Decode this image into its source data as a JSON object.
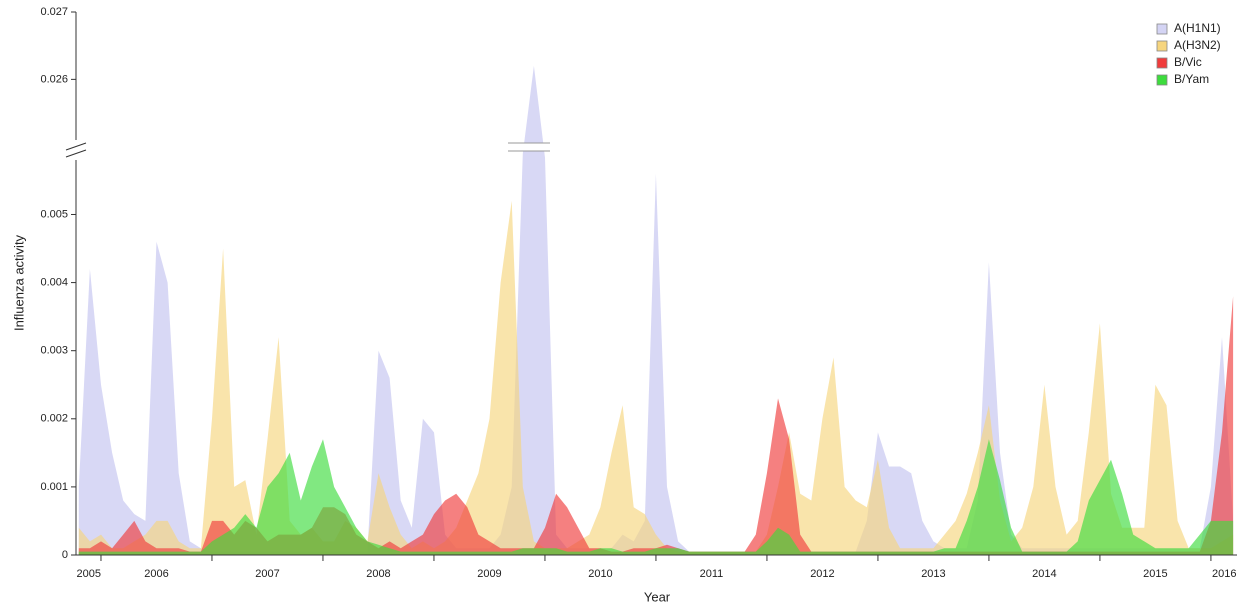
{
  "chart_data": {
    "type": "area",
    "x_label": "Year",
    "y_label": "Influenza activity",
    "legend": "top-right",
    "xlim": [
      2005.775,
      2016.235
    ],
    "xticks": [
      {
        "value": 2005.89,
        "label": "2005"
      },
      {
        "value": 2006.5,
        "label": "2006"
      },
      {
        "value": 2007.5,
        "label": "2007"
      },
      {
        "value": 2008.5,
        "label": "2008"
      },
      {
        "value": 2009.5,
        "label": "2009"
      },
      {
        "value": 2010.5,
        "label": "2010"
      },
      {
        "value": 2011.5,
        "label": "2011"
      },
      {
        "value": 2012.5,
        "label": "2012"
      },
      {
        "value": 2013.5,
        "label": "2013"
      },
      {
        "value": 2014.5,
        "label": "2014"
      },
      {
        "value": 2015.5,
        "label": "2015"
      },
      {
        "value": 2016.12,
        "label": "2016"
      }
    ],
    "xtick_marks": [
      2006,
      2007,
      2008,
      2009,
      2010,
      2011,
      2012,
      2013,
      2014,
      2015,
      2016
    ],
    "ylim": [
      0,
      0.027
    ],
    "y_break": [
      0.0058,
      0.0251
    ],
    "yticks": [
      0,
      0.001,
      0.002,
      0.003,
      0.004,
      0.005,
      0.026,
      0.027
    ],
    "x": [
      2005.8,
      2005.9,
      2006.0,
      2006.1,
      2006.2,
      2006.3,
      2006.4,
      2006.5,
      2006.6,
      2006.7,
      2006.8,
      2006.9,
      2007.0,
      2007.1,
      2007.2,
      2007.3,
      2007.4,
      2007.5,
      2007.6,
      2007.7,
      2007.8,
      2007.9,
      2008.0,
      2008.1,
      2008.2,
      2008.3,
      2008.4,
      2008.5,
      2008.6,
      2008.7,
      2008.8,
      2008.9,
      2009.0,
      2009.1,
      2009.2,
      2009.3,
      2009.4,
      2009.5,
      2009.6,
      2009.7,
      2009.8,
      2009.9,
      2010.0,
      2010.1,
      2010.2,
      2010.3,
      2010.4,
      2010.5,
      2010.6,
      2010.7,
      2010.8,
      2010.9,
      2011.0,
      2011.1,
      2011.2,
      2011.3,
      2011.4,
      2011.5,
      2011.6,
      2011.7,
      2011.8,
      2011.9,
      2012.0,
      2012.1,
      2012.2,
      2012.3,
      2012.4,
      2012.5,
      2012.6,
      2012.7,
      2012.8,
      2012.9,
      2013.0,
      2013.1,
      2013.2,
      2013.3,
      2013.4,
      2013.5,
      2013.6,
      2013.7,
      2013.8,
      2013.9,
      2014.0,
      2014.1,
      2014.2,
      2014.3,
      2014.4,
      2014.5,
      2014.6,
      2014.7,
      2014.8,
      2014.9,
      2015.0,
      2015.1,
      2015.2,
      2015.3,
      2015.4,
      2015.5,
      2015.6,
      2015.7,
      2015.8,
      2015.9,
      2016.0,
      2016.1,
      2016.2
    ],
    "series": [
      {
        "name": "A(H1N1)",
        "color": "#d4d4f4",
        "values": [
          0.001,
          0.0042,
          0.0025,
          0.0015,
          0.0008,
          0.0006,
          0.0005,
          0.0046,
          0.004,
          0.0012,
          0.0002,
          0.0001,
          5e-05,
          5e-05,
          5e-05,
          5e-05,
          5e-05,
          5e-05,
          5e-05,
          5e-05,
          5e-05,
          5e-05,
          5e-05,
          5e-05,
          5e-05,
          5e-05,
          5e-05,
          0.003,
          0.0026,
          0.0008,
          0.0004,
          0.002,
          0.0018,
          0.0003,
          0.0001,
          0.0001,
          0.0001,
          0.0001,
          0.0003,
          0.001,
          0.012,
          0.0262,
          0.008,
          0.0003,
          0.0001,
          0.0001,
          0.0001,
          0.0001,
          0.0001,
          0.0003,
          0.0002,
          0.0005,
          0.0056,
          0.001,
          0.0002,
          5e-05,
          5e-05,
          5e-05,
          5e-05,
          5e-05,
          5e-05,
          5e-05,
          5e-05,
          5e-05,
          5e-05,
          5e-05,
          5e-05,
          5e-05,
          5e-05,
          5e-05,
          5e-05,
          0.0005,
          0.0018,
          0.0013,
          0.0013,
          0.0012,
          0.0005,
          0.0002,
          0.0001,
          0.0001,
          0.0001,
          0.0008,
          0.0043,
          0.0015,
          0.0003,
          0.0001,
          0.0001,
          0.0001,
          0.0001,
          0.0001,
          0.0001,
          0.0001,
          0.0001,
          0.0001,
          0.0001,
          0.0001,
          0.0001,
          0.0001,
          0.0001,
          0.0001,
          0.0001,
          0.0001,
          0.001,
          0.0032,
          0.0005
        ]
      },
      {
        "name": "A(H3N2)",
        "color": "#f6d57e",
        "values": [
          0.0004,
          0.0002,
          0.0003,
          0.0001,
          0.0001,
          0.0002,
          0.0003,
          0.0005,
          0.0005,
          0.0002,
          0.0001,
          0.0001,
          0.002,
          0.0045,
          0.001,
          0.0011,
          0.0003,
          0.0017,
          0.0032,
          0.0005,
          0.0003,
          0.0004,
          0.0002,
          0.0002,
          0.0005,
          0.0004,
          0.0002,
          0.0012,
          0.0007,
          0.0003,
          0.0001,
          0.0002,
          0.0001,
          0.0002,
          0.0004,
          0.0008,
          0.0012,
          0.002,
          0.004,
          0.0052,
          0.001,
          0.0002,
          0.0001,
          0.0001,
          0.0001,
          0.0002,
          0.0003,
          0.0007,
          0.0015,
          0.0022,
          0.0007,
          0.0006,
          0.0003,
          0.0001,
          5e-05,
          5e-05,
          5e-05,
          5e-05,
          5e-05,
          5e-05,
          5e-05,
          5e-05,
          0.0003,
          0.001,
          0.0018,
          0.0009,
          0.0008,
          0.002,
          0.0029,
          0.001,
          0.0008,
          0.0007,
          0.0014,
          0.0004,
          0.0001,
          0.0001,
          0.0001,
          0.0001,
          0.0003,
          0.0005,
          0.0009,
          0.0015,
          0.0022,
          0.0008,
          0.0002,
          0.0004,
          0.001,
          0.0025,
          0.001,
          0.0003,
          0.0005,
          0.0018,
          0.0034,
          0.0009,
          0.0004,
          0.0004,
          0.0004,
          0.0025,
          0.0022,
          0.0005,
          0.0001,
          0.0001,
          0.0001,
          0.0002,
          0.0003
        ]
      },
      {
        "name": "B/Vic",
        "color": "#f03c3c",
        "values": [
          0.0001,
          0.0001,
          0.0002,
          0.0001,
          0.0003,
          0.0005,
          0.0002,
          0.0001,
          0.0001,
          0.0001,
          5e-05,
          5e-05,
          0.0005,
          0.0005,
          0.0003,
          0.0005,
          0.0004,
          0.0002,
          0.0003,
          0.0003,
          0.0003,
          0.0004,
          0.0007,
          0.0007,
          0.0006,
          0.0003,
          0.0002,
          0.0001,
          0.0002,
          0.0001,
          0.0002,
          0.0003,
          0.0006,
          0.0008,
          0.0009,
          0.0007,
          0.0003,
          0.0002,
          0.0001,
          0.0001,
          0.0001,
          0.0001,
          0.0004,
          0.0009,
          0.0007,
          0.0004,
          0.0001,
          0.0001,
          5e-05,
          5e-05,
          0.0001,
          0.0001,
          0.0001,
          0.00015,
          0.0001,
          5e-05,
          5e-05,
          5e-05,
          5e-05,
          5e-05,
          5e-05,
          0.0003,
          0.0012,
          0.0023,
          0.0017,
          0.0003,
          5e-05,
          5e-05,
          5e-05,
          5e-05,
          5e-05,
          5e-05,
          5e-05,
          5e-05,
          5e-05,
          5e-05,
          5e-05,
          5e-05,
          5e-05,
          5e-05,
          5e-05,
          5e-05,
          5e-05,
          5e-05,
          5e-05,
          5e-05,
          5e-05,
          5e-05,
          5e-05,
          5e-05,
          5e-05,
          5e-05,
          5e-05,
          5e-05,
          5e-05,
          5e-05,
          5e-05,
          5e-05,
          5e-05,
          5e-05,
          5e-05,
          5e-05,
          0.0005,
          0.0018,
          0.0038
        ]
      },
      {
        "name": "B/Yam",
        "color": "#3ddc3d",
        "values": [
          5e-05,
          5e-05,
          5e-05,
          5e-05,
          5e-05,
          5e-05,
          5e-05,
          5e-05,
          5e-05,
          5e-05,
          5e-05,
          5e-05,
          0.0002,
          0.0003,
          0.0004,
          0.0006,
          0.0004,
          0.001,
          0.0012,
          0.0015,
          0.0008,
          0.0013,
          0.0017,
          0.001,
          0.0007,
          0.0004,
          0.0002,
          0.00015,
          0.0001,
          5e-05,
          5e-05,
          5e-05,
          5e-05,
          5e-05,
          5e-05,
          5e-05,
          5e-05,
          5e-05,
          5e-05,
          5e-05,
          0.0001,
          0.0001,
          0.0001,
          0.0001,
          5e-05,
          5e-05,
          5e-05,
          0.0001,
          0.0001,
          5e-05,
          5e-05,
          5e-05,
          0.0001,
          0.0001,
          0.0001,
          5e-05,
          5e-05,
          5e-05,
          5e-05,
          5e-05,
          5e-05,
          5e-05,
          0.0002,
          0.0004,
          0.0003,
          5e-05,
          5e-05,
          5e-05,
          5e-05,
          5e-05,
          5e-05,
          5e-05,
          5e-05,
          5e-05,
          5e-05,
          5e-05,
          5e-05,
          5e-05,
          0.0001,
          0.0001,
          0.0005,
          0.001,
          0.0017,
          0.0011,
          0.0004,
          5e-05,
          5e-05,
          5e-05,
          5e-05,
          5e-05,
          0.0002,
          0.0008,
          0.0011,
          0.0014,
          0.0009,
          0.0003,
          0.0002,
          0.0001,
          0.0001,
          0.0001,
          0.0001,
          0.0003,
          0.0005,
          0.0005,
          0.0005
        ]
      }
    ]
  }
}
